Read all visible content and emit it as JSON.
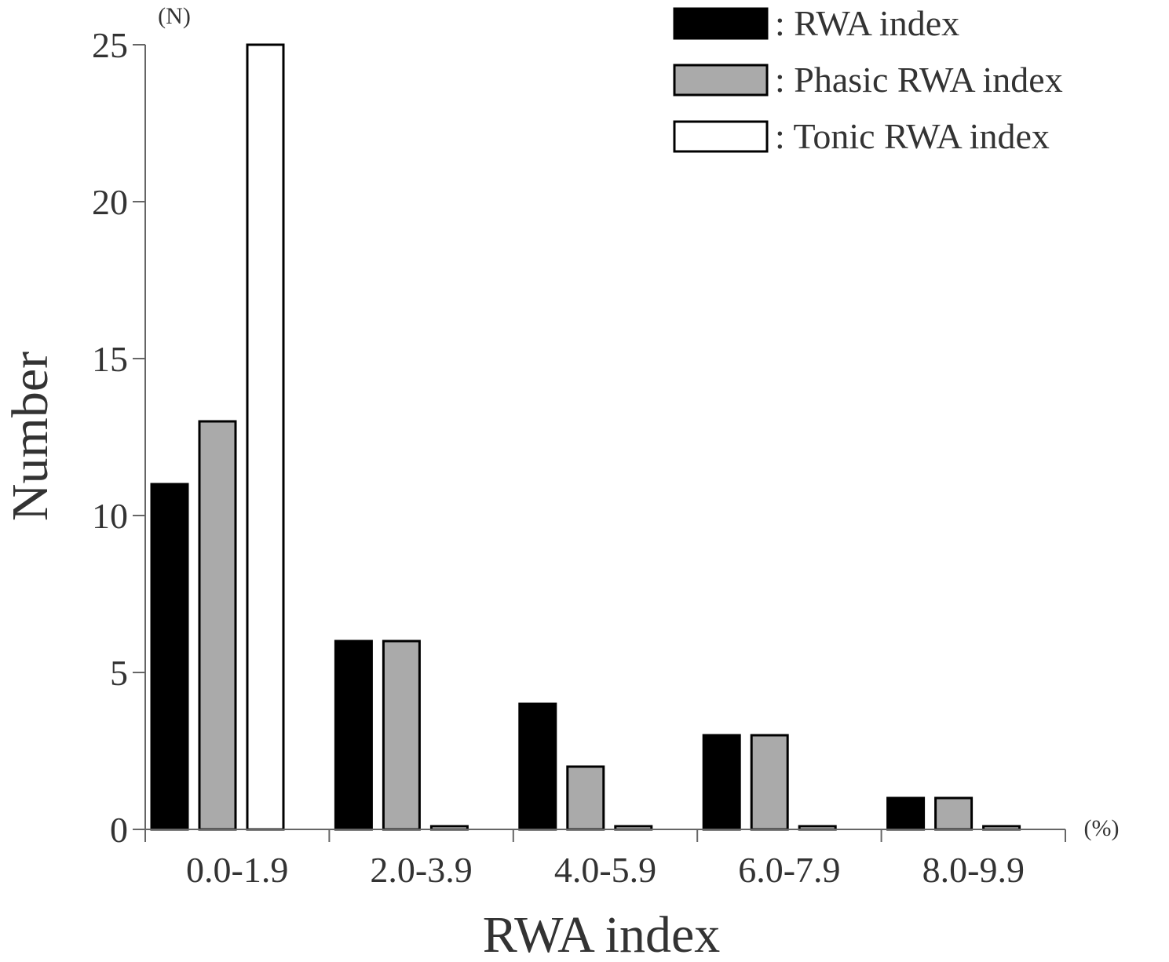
{
  "chart_data": {
    "type": "bar",
    "categories": [
      "0.0-1.9",
      "2.0-3.9",
      "4.0-5.9",
      "6.0-7.9",
      "8.0-9.9"
    ],
    "series": [
      {
        "name": "RWA index",
        "values": [
          11,
          6,
          4,
          3,
          1
        ],
        "color": "#000000"
      },
      {
        "name": "Phasic RWA index",
        "values": [
          13,
          6,
          2,
          3,
          1
        ],
        "color": "#aaaaaa"
      },
      {
        "name": "Tonic RWA index",
        "values": [
          25,
          0,
          0,
          0,
          0
        ],
        "color": "#ffffff"
      }
    ],
    "title": "",
    "xlabel": "RWA index",
    "ylabel": "Number",
    "x_unit": "(%)",
    "y_unit": "(N)",
    "ylim": [
      0,
      25
    ],
    "yticks": [
      "0",
      "5",
      "10",
      "15",
      "20",
      "25"
    ],
    "grid": false,
    "legend": {
      "position": "top-right",
      "entries": [
        ": RWA index",
        ": Phasic RWA index",
        ": Tonic RWA index"
      ]
    }
  }
}
